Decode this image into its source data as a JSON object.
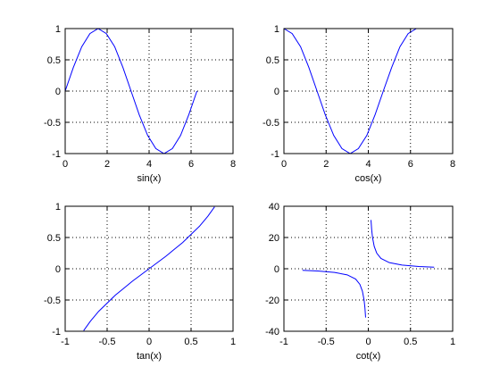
{
  "figure": {
    "background": "#ffffff"
  },
  "chart_data": [
    {
      "id": "sin",
      "type": "line",
      "title": "",
      "xlabel": "sin(x)",
      "ylabel": "",
      "xlim": [
        0,
        8
      ],
      "ylim": [
        -1,
        1
      ],
      "xticks": [
        0,
        2,
        4,
        6,
        8
      ],
      "yticks": [
        -1,
        -0.5,
        0,
        0.5,
        1
      ],
      "xtick_labels": [
        "0",
        "2",
        "4",
        "6",
        "8"
      ],
      "ytick_labels": [
        "-1",
        "-0.5",
        "0",
        "0.5",
        "1"
      ],
      "grid": true,
      "color": "#0000ff",
      "series": [
        {
          "x": [
            0,
            0.39,
            0.79,
            1.18,
            1.57,
            1.96,
            2.36,
            2.75,
            3.14,
            3.53,
            3.93,
            4.32,
            4.71,
            5.11,
            5.5,
            5.89,
            6.28
          ],
          "values": [
            0,
            0.38,
            0.71,
            0.92,
            1,
            0.92,
            0.71,
            0.38,
            0,
            -0.38,
            -0.71,
            -0.92,
            -1,
            -0.92,
            -0.71,
            -0.38,
            0
          ]
        }
      ]
    },
    {
      "id": "cos",
      "type": "line",
      "title": "",
      "xlabel": "cos(x)",
      "ylabel": "",
      "xlim": [
        0,
        8
      ],
      "ylim": [
        -1,
        1
      ],
      "xticks": [
        0,
        2,
        4,
        6,
        8
      ],
      "yticks": [
        -1,
        -0.5,
        0,
        0.5,
        1
      ],
      "xtick_labels": [
        "0",
        "2",
        "4",
        "6",
        "8"
      ],
      "ytick_labels": [
        "-1",
        "-0.5",
        "0",
        "0.5",
        "1"
      ],
      "grid": true,
      "color": "#0000ff",
      "series": [
        {
          "x": [
            0,
            0.39,
            0.79,
            1.18,
            1.57,
            1.96,
            2.36,
            2.75,
            3.14,
            3.53,
            3.93,
            4.32,
            4.71,
            5.11,
            5.5,
            5.89,
            6.28
          ],
          "values": [
            1,
            0.92,
            0.71,
            0.38,
            0,
            -0.38,
            -0.71,
            -0.92,
            -1,
            -0.92,
            -0.71,
            -0.38,
            0,
            0.38,
            0.71,
            0.92,
            1
          ]
        }
      ]
    },
    {
      "id": "tan",
      "type": "line",
      "title": "",
      "xlabel": "tan(x)",
      "ylabel": "",
      "xlim": [
        -1,
        1
      ],
      "ylim": [
        -1,
        1
      ],
      "xticks": [
        -1,
        -0.5,
        0,
        0.5,
        1
      ],
      "yticks": [
        -1,
        -0.5,
        0,
        0.5,
        1
      ],
      "xtick_labels": [
        "-1",
        "-0.5",
        "0",
        "0.5",
        "1"
      ],
      "ytick_labels": [
        "-1",
        "-0.5",
        "0",
        "0.5",
        "1"
      ],
      "grid": true,
      "color": "#0000ff",
      "series": [
        {
          "x": [
            -0.78,
            -0.7,
            -0.6,
            -0.5,
            -0.4,
            -0.3,
            -0.2,
            -0.1,
            0,
            0.1,
            0.2,
            0.3,
            0.4,
            0.5,
            0.6,
            0.7,
            0.78
          ],
          "values": [
            -0.99,
            -0.84,
            -0.68,
            -0.55,
            -0.42,
            -0.31,
            -0.2,
            -0.1,
            0,
            0.1,
            0.2,
            0.31,
            0.42,
            0.55,
            0.68,
            0.84,
            0.99
          ]
        }
      ]
    },
    {
      "id": "cot",
      "type": "line",
      "title": "",
      "xlabel": "cot(x)",
      "ylabel": "",
      "xlim": [
        -1,
        1
      ],
      "ylim": [
        -40,
        40
      ],
      "xticks": [
        -1,
        -0.5,
        0,
        0.5,
        1
      ],
      "yticks": [
        -40,
        -20,
        0,
        20,
        40
      ],
      "xtick_labels": [
        "-1",
        "-0.5",
        "0",
        "0.5",
        "1"
      ],
      "ytick_labels": [
        "-40",
        "-20",
        "0",
        "20",
        "40"
      ],
      "grid": true,
      "color": "#0000ff",
      "series": [
        {
          "x": [
            -0.78,
            -0.6,
            -0.4,
            -0.25,
            -0.15,
            -0.1,
            -0.07,
            -0.05,
            -0.04,
            -0.032
          ],
          "values": [
            -1.0,
            -1.46,
            -2.36,
            -3.92,
            -6.6,
            -9.97,
            -14.3,
            -20,
            -25,
            -31.2
          ]
        },
        {
          "x": [
            0.032,
            0.04,
            0.05,
            0.07,
            0.1,
            0.15,
            0.25,
            0.4,
            0.6,
            0.78
          ],
          "values": [
            31.2,
            25,
            20,
            14.3,
            9.97,
            6.6,
            3.92,
            2.36,
            1.46,
            1.0
          ]
        }
      ]
    }
  ]
}
